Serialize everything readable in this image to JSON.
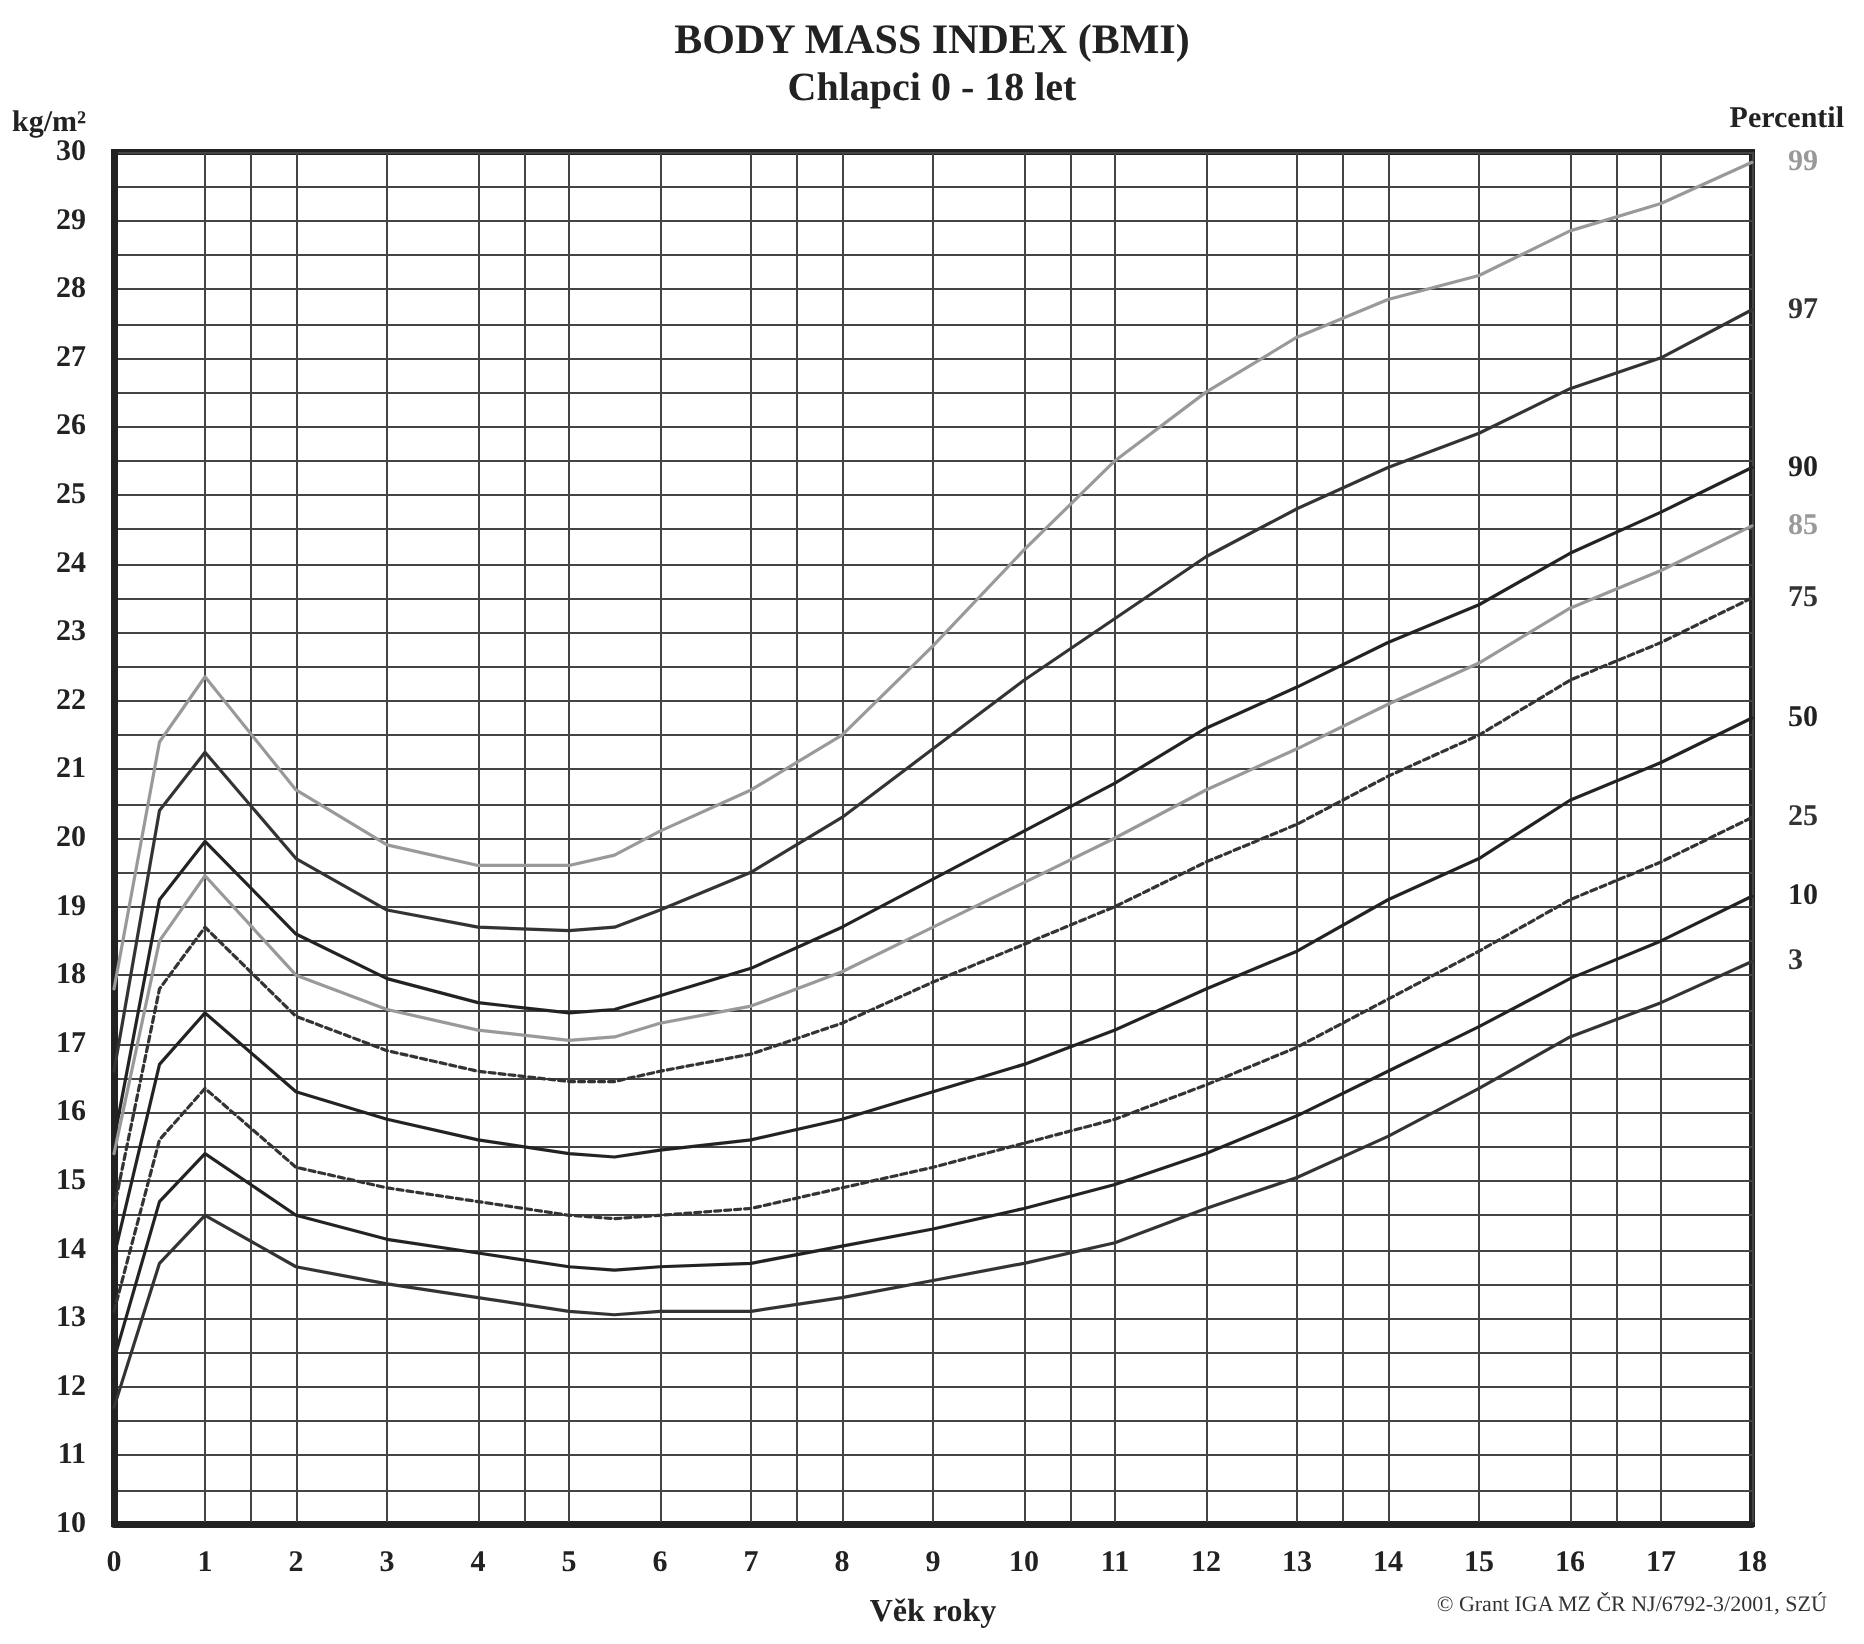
{
  "chart_data": {
    "type": "line",
    "title": "BODY MASS INDEX (BMI)",
    "subtitle": "Chlapci 0 - 18 let",
    "xlabel": "Věk roky",
    "ylabel": "kg/m²",
    "legend_title": "Percentil",
    "annotations": [
      "© Grant IGA MZ ČR NJ/6792-3/2001, SZÚ"
    ],
    "x": [
      0,
      0.5,
      1,
      2,
      3,
      4,
      5,
      5.5,
      6,
      7,
      8,
      9,
      10,
      11,
      12,
      13,
      14,
      15,
      16,
      17,
      18
    ],
    "series": [
      {
        "name": "99",
        "color": "#999999",
        "line_style": "solid",
        "values": [
          17.8,
          21.4,
          22.35,
          20.7,
          19.9,
          19.6,
          19.6,
          19.75,
          20.1,
          20.7,
          21.5,
          22.8,
          24.2,
          25.5,
          26.5,
          27.3,
          27.85,
          28.2,
          28.85,
          29.25,
          29.85
        ]
      },
      {
        "name": "97",
        "color": "#333333",
        "line_style": "solid",
        "values": [
          16.6,
          20.4,
          21.25,
          19.7,
          18.95,
          18.7,
          18.65,
          18.7,
          18.95,
          19.5,
          20.3,
          21.3,
          22.3,
          23.2,
          24.1,
          24.8,
          25.4,
          25.9,
          26.55,
          27.0,
          27.7
        ]
      },
      {
        "name": "90",
        "color": "#222222",
        "line_style": "solid",
        "values": [
          15.6,
          19.1,
          19.95,
          18.6,
          17.95,
          17.6,
          17.45,
          17.5,
          17.7,
          18.1,
          18.7,
          19.4,
          20.1,
          20.8,
          21.6,
          22.2,
          22.85,
          23.4,
          24.15,
          24.75,
          25.4
        ]
      },
      {
        "name": "85",
        "color": "#999999",
        "line_style": "solid",
        "values": [
          15.4,
          18.5,
          19.45,
          18.0,
          17.5,
          17.2,
          17.05,
          17.1,
          17.3,
          17.55,
          18.05,
          18.7,
          19.35,
          20.0,
          20.7,
          21.3,
          21.95,
          22.55,
          23.35,
          23.9,
          24.55
        ]
      },
      {
        "name": "75",
        "color": "#333333",
        "line_style": "dashed",
        "values": [
          14.6,
          17.8,
          18.7,
          17.4,
          16.9,
          16.6,
          16.45,
          16.45,
          16.6,
          16.85,
          17.3,
          17.9,
          18.45,
          19.0,
          19.65,
          20.2,
          20.9,
          21.5,
          22.3,
          22.85,
          23.5
        ]
      },
      {
        "name": "50",
        "color": "#222222",
        "line_style": "solid",
        "values": [
          13.9,
          16.7,
          17.45,
          16.3,
          15.9,
          15.6,
          15.4,
          15.35,
          15.45,
          15.6,
          15.9,
          16.3,
          16.7,
          17.2,
          17.8,
          18.35,
          19.1,
          19.7,
          20.55,
          21.1,
          21.75
        ]
      },
      {
        "name": "25",
        "color": "#333333",
        "line_style": "dashed",
        "values": [
          13.1,
          15.6,
          16.35,
          15.2,
          14.9,
          14.7,
          14.5,
          14.45,
          14.5,
          14.6,
          14.9,
          15.2,
          15.55,
          15.9,
          16.4,
          16.95,
          17.65,
          18.35,
          19.1,
          19.65,
          20.3
        ]
      },
      {
        "name": "10",
        "color": "#222222",
        "line_style": "solid",
        "values": [
          12.4,
          14.7,
          15.4,
          14.5,
          14.15,
          13.95,
          13.75,
          13.7,
          13.75,
          13.8,
          14.05,
          14.3,
          14.6,
          14.95,
          15.4,
          15.95,
          16.6,
          17.25,
          17.95,
          18.5,
          19.15
        ]
      },
      {
        "name": "3",
        "color": "#333333",
        "line_style": "solid",
        "values": [
          11.7,
          13.8,
          14.5,
          13.75,
          13.5,
          13.3,
          13.1,
          13.05,
          13.1,
          13.1,
          13.3,
          13.55,
          13.8,
          14.1,
          14.6,
          15.05,
          15.65,
          16.35,
          17.1,
          17.6,
          18.2
        ]
      }
    ],
    "xlim": [
      0,
      18
    ],
    "xticks": [
      0,
      1,
      2,
      3,
      4,
      5,
      6,
      7,
      8,
      9,
      10,
      11,
      12,
      13,
      14,
      15,
      16,
      17,
      18
    ],
    "ylim": [
      10,
      30
    ],
    "yticks": [
      10,
      11,
      12,
      13,
      14,
      15,
      16,
      17,
      18,
      19,
      20,
      21,
      22,
      23,
      24,
      25,
      26,
      27,
      28,
      29,
      30
    ],
    "grid": true,
    "legend": false,
    "marker": "none"
  }
}
